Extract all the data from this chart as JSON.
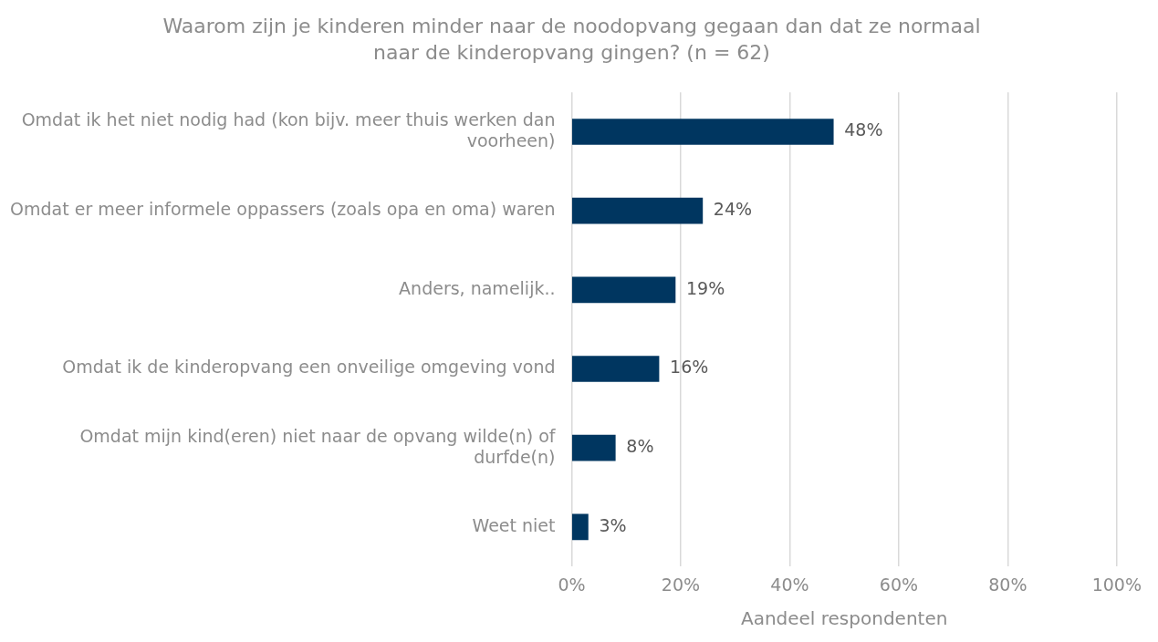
{
  "chart_data": {
    "type": "bar",
    "orientation": "horizontal",
    "title": "Waarom zijn je kinderen minder naar de noodopvang gegaan dan dat ze normaal naar de kinderopvang gingen? (n = 62)",
    "xlabel": "Aandeel respondenten",
    "categories": [
      "Omdat ik het niet nodig had (kon bijv. meer thuis werken dan voorheen)",
      "Omdat er meer informele oppassers (zoals opa en oma) waren",
      "Anders, namelijk..",
      "Omdat ik de kinderopvang een onveilige omgeving vond",
      "Omdat mijn kind(eren) niet naar de opvang wilde(n) of durfde(n)",
      "Weet niet"
    ],
    "values": [
      48,
      24,
      19,
      16,
      8,
      3
    ],
    "value_labels": [
      "48%",
      "24%",
      "19%",
      "16%",
      "8%",
      "3%"
    ],
    "color": "#003660",
    "xlim": [
      0,
      100
    ],
    "xticks": [
      {
        "value": 0,
        "label": "0%"
      },
      {
        "value": 20,
        "label": "20%"
      },
      {
        "value": 40,
        "label": "40%"
      },
      {
        "value": 60,
        "label": "60%"
      },
      {
        "value": 80,
        "label": "80%"
      },
      {
        "value": 100,
        "label": "100%"
      }
    ],
    "grid": "x",
    "legend": false
  }
}
